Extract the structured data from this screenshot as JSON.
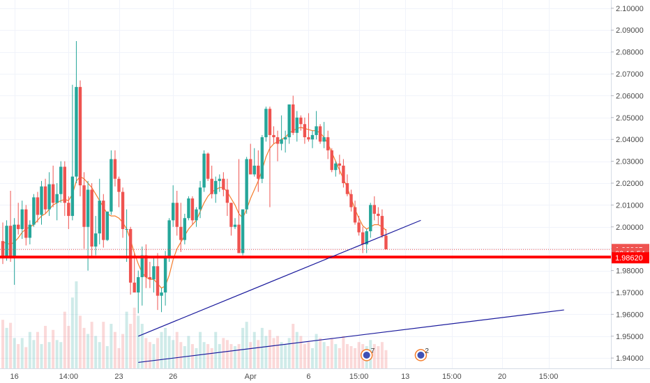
{
  "chart_data": {
    "type": "candlestick",
    "ylim": [
      1.9375,
      2.1025
    ],
    "yticks": [
      "2.10000",
      "2.09000",
      "2.08000",
      "2.07000",
      "2.06000",
      "2.05000",
      "2.04000",
      "2.03000",
      "2.02000",
      "2.01000",
      "2.00000",
      "1.99000",
      "1.98000",
      "1.97000",
      "1.96000",
      "1.95000",
      "1.94000"
    ],
    "xticks": [
      {
        "label": "16",
        "bar": 3
      },
      {
        "label": "14:00",
        "bar": 17
      },
      {
        "label": "23",
        "bar": 30
      },
      {
        "label": "26",
        "bar": 44
      },
      {
        "label": "Apr",
        "bar": 64
      },
      {
        "label": "6",
        "bar": 79
      },
      {
        "label": "15:00",
        "bar": 92
      },
      {
        "label": "13",
        "bar": 104
      },
      {
        "label": "15:00",
        "bar": 116
      },
      {
        "label": "20",
        "bar": 129
      },
      {
        "label": "15:00",
        "bar": 141
      }
    ],
    "candles": [
      [
        1.9935,
        2.002,
        1.983,
        1.986,
        48
      ],
      [
        1.986,
        2.003,
        1.9845,
        2.0005,
        40
      ],
      [
        2.0005,
        2.0165,
        1.984,
        1.9865,
        45
      ],
      [
        1.9865,
        2.004,
        1.9735,
        2.001,
        30
      ],
      [
        2.001,
        2.011,
        1.9965,
        1.999,
        24
      ],
      [
        1.999,
        2.012,
        1.9945,
        2.008,
        30
      ],
      [
        2.008,
        2.01,
        1.9915,
        1.995,
        21
      ],
      [
        1.995,
        2.003,
        1.992,
        2.001,
        36
      ],
      [
        2.001,
        2.015,
        2.0,
        2.0135,
        28
      ],
      [
        2.0135,
        2.016,
        2.002,
        2.0055,
        36
      ],
      [
        2.0055,
        2.021,
        2.001,
        2.0185,
        24
      ],
      [
        2.0185,
        2.022,
        2.006,
        2.008,
        42
      ],
      [
        2.008,
        2.025,
        2.005,
        2.0195,
        26
      ],
      [
        2.0195,
        2.028,
        2.009,
        2.011,
        38
      ],
      [
        2.011,
        2.02,
        2.003,
        2.015,
        28
      ],
      [
        2.015,
        2.03,
        2.011,
        2.0275,
        26
      ],
      [
        2.0275,
        2.03,
        2.005,
        2.011,
        56
      ],
      [
        2.011,
        2.014,
        1.999,
        2.005,
        42
      ],
      [
        2.005,
        2.065,
        2.003,
        2.023,
        70
      ],
      [
        2.023,
        2.085,
        2.02,
        2.064,
        86
      ],
      [
        2.064,
        2.067,
        2.014,
        2.019,
        52
      ],
      [
        2.019,
        2.025,
        1.99,
        2.0,
        40
      ],
      [
        2.0,
        2.021,
        1.98,
        2.017,
        34
      ],
      [
        2.017,
        2.02,
        1.986,
        1.991,
        46
      ],
      [
        1.991,
        2.005,
        1.987,
        1.997,
        32
      ],
      [
        1.997,
        2.022,
        1.992,
        2.012,
        26
      ],
      [
        2.012,
        2.015,
        1.9905,
        1.994,
        46
      ],
      [
        1.994,
        2.007,
        1.9935,
        2.007,
        22
      ],
      [
        2.007,
        2.035,
        2.0055,
        2.031,
        44
      ],
      [
        2.031,
        2.035,
        2.0185,
        2.022,
        36
      ],
      [
        2.022,
        2.023,
        2.009,
        2.016,
        20
      ],
      [
        2.016,
        2.018,
        1.995,
        1.999,
        34
      ],
      [
        1.999,
        2.008,
        1.984,
        1.999,
        56
      ],
      [
        1.999,
        2.0,
        1.969,
        1.9745,
        44
      ],
      [
        1.9745,
        1.988,
        1.9705,
        1.97,
        60
      ],
      [
        1.97,
        1.98,
        1.9605,
        1.977,
        52
      ],
      [
        1.977,
        1.991,
        1.964,
        1.987,
        44
      ],
      [
        1.987,
        1.992,
        1.972,
        1.977,
        30
      ],
      [
        1.977,
        1.984,
        1.972,
        1.976,
        26
      ],
      [
        1.976,
        1.986,
        1.97,
        1.982,
        24
      ],
      [
        1.982,
        1.988,
        1.962,
        1.9685,
        30
      ],
      [
        1.9685,
        1.972,
        1.961,
        1.97,
        36
      ],
      [
        1.97,
        1.989,
        1.964,
        1.986,
        40
      ],
      [
        1.986,
        2.004,
        1.984,
        2.003,
        32
      ],
      [
        2.003,
        2.019,
        2.0,
        2.011,
        28
      ],
      [
        2.011,
        2.0165,
        1.996,
        2.0,
        36
      ],
      [
        2.0,
        2.011,
        1.9885,
        1.994,
        26
      ],
      [
        1.994,
        2.006,
        1.992,
        2.004,
        22
      ],
      [
        2.004,
        2.014,
        2.003,
        2.013,
        32
      ],
      [
        2.013,
        2.014,
        2.001,
        2.003,
        24
      ],
      [
        2.003,
        2.009,
        2.0,
        2.008,
        20
      ],
      [
        2.008,
        2.021,
        2.004,
        2.018,
        36
      ],
      [
        2.018,
        2.035,
        2.016,
        2.0335,
        26
      ],
      [
        2.0335,
        2.034,
        2.021,
        2.022,
        24
      ],
      [
        2.022,
        2.028,
        2.013,
        2.015,
        20
      ],
      [
        2.015,
        2.023,
        2.011,
        2.021,
        36
      ],
      [
        2.021,
        2.024,
        2.016,
        2.022,
        24
      ],
      [
        2.022,
        2.025,
        2.014,
        2.017,
        30
      ],
      [
        2.017,
        2.022,
        2.005,
        2.011,
        28
      ],
      [
        2.011,
        2.011,
        1.996,
        2.0,
        24
      ],
      [
        2.0,
        2.004,
        1.999,
        2.001,
        22
      ],
      [
        2.001,
        2.031,
        1.989,
        1.988,
        24
      ],
      [
        1.988,
        2.008,
        1.987,
        2.008,
        40
      ],
      [
        2.008,
        2.032,
        2.006,
        2.031,
        46
      ],
      [
        2.031,
        2.038,
        2.024,
        2.024,
        26
      ],
      [
        2.024,
        2.036,
        2.023,
        2.028,
        36
      ],
      [
        2.028,
        2.035,
        2.016,
        2.022,
        28
      ],
      [
        2.022,
        2.042,
        2.02,
        2.041,
        40
      ],
      [
        2.041,
        2.055,
        2.039,
        2.054,
        32
      ],
      [
        2.054,
        2.055,
        2.009,
        2.042,
        38
      ],
      [
        2.042,
        2.046,
        2.038,
        2.041,
        30
      ],
      [
        2.041,
        2.044,
        2.03,
        2.038,
        32
      ],
      [
        2.038,
        2.051,
        2.035,
        2.04,
        26
      ],
      [
        2.04,
        2.044,
        2.034,
        2.041,
        24
      ],
      [
        2.041,
        2.056,
        2.038,
        2.056,
        30
      ],
      [
        2.056,
        2.06,
        2.042,
        2.043,
        44
      ],
      [
        2.043,
        2.053,
        2.039,
        2.05,
        36
      ],
      [
        2.05,
        2.051,
        2.044,
        2.047,
        32
      ],
      [
        2.047,
        2.05,
        2.038,
        2.041,
        24
      ],
      [
        2.041,
        2.052,
        2.039,
        2.04,
        26
      ],
      [
        2.04,
        2.044,
        2.036,
        2.042,
        20
      ],
      [
        2.042,
        2.053,
        2.04,
        2.046,
        34
      ],
      [
        2.046,
        2.047,
        2.038,
        2.039,
        30
      ],
      [
        2.039,
        2.048,
        2.036,
        2.041,
        26
      ],
      [
        2.041,
        2.044,
        2.031,
        2.035,
        22
      ],
      [
        2.035,
        2.036,
        2.025,
        2.026,
        30
      ],
      [
        2.026,
        2.03,
        2.023,
        2.029,
        24
      ],
      [
        2.029,
        2.033,
        2.024,
        2.028,
        20
      ],
      [
        2.028,
        2.031,
        2.018,
        2.02,
        32
      ],
      [
        2.02,
        2.024,
        2.014,
        2.015,
        24
      ],
      [
        2.015,
        2.017,
        2.007,
        2.009,
        22
      ],
      [
        2.009,
        2.012,
        2.001,
        2.002,
        20
      ],
      [
        2.002,
        2.005,
        1.996,
        1.9975,
        26
      ],
      [
        1.9975,
        2.0,
        1.988,
        1.992,
        24
      ],
      [
        1.992,
        1.999,
        1.988,
        1.998,
        22
      ],
      [
        1.998,
        2.011,
        1.995,
        2.01,
        28
      ],
      [
        2.01,
        2.014,
        2.003,
        2.006,
        24
      ],
      [
        2.006,
        2.009,
        2.001,
        2.005,
        22
      ],
      [
        2.005,
        2.008,
        1.995,
        1.996,
        26
      ],
      [
        1.996,
        1.999,
        1.99,
        1.9897,
        18
      ]
    ],
    "ma": [
      1.993,
      1.9925,
      1.992,
      1.993,
      1.995,
      1.9975,
      1.999,
      2.0,
      2.001,
      2.003,
      2.005,
      2.006,
      2.008,
      2.01,
      2.011,
      2.012,
      2.0125,
      2.012,
      2.015,
      2.021,
      2.023,
      2.022,
      2.02,
      2.018,
      2.015,
      2.012,
      2.009,
      2.006,
      2.005,
      2.005,
      2.004,
      2.002,
      1.999,
      1.994,
      1.988,
      1.983,
      1.979,
      1.977,
      1.976,
      1.976,
      1.974,
      1.972,
      1.973,
      1.978,
      1.985,
      1.99,
      1.993,
      1.996,
      1.999,
      2.001,
      2.003,
      2.007,
      2.011,
      2.014,
      2.016,
      2.017,
      2.018,
      2.018,
      2.016,
      2.013,
      2.01,
      2.006,
      2.004,
      2.008,
      2.013,
      2.017,
      2.021,
      2.026,
      2.032,
      2.036,
      2.038,
      2.039,
      2.04,
      2.041,
      2.043,
      2.044,
      2.045,
      2.0455,
      2.045,
      2.0445,
      2.044,
      2.044,
      2.043,
      2.041,
      2.038,
      2.034,
      2.03,
      2.026,
      2.022,
      2.018,
      2.013,
      2.008,
      2.004,
      2.0005,
      1.999,
      2.0,
      2.001,
      2.001,
      2.0,
      1.9985
    ],
    "trendlines": [
      {
        "from": [
          35,
          1.95
        ],
        "to": [
          108,
          2.003
        ],
        "color": "#1a1a9c"
      },
      {
        "from": [
          35,
          1.938
        ],
        "to": [
          145,
          1.962
        ],
        "color": "#1a1a9c"
      }
    ],
    "horizontal_line": {
      "price": 1.9862,
      "color": "#ff0000"
    },
    "last_price_line": {
      "price": 1.98965,
      "color": "#ef5350"
    },
    "price_labels": [
      {
        "text": "1.98965",
        "price": 1.98965,
        "color": "#ef5350"
      },
      {
        "text": "03:10:54",
        "price": 1.98785,
        "color": "#ef5350"
      },
      {
        "text": "1.98620",
        "price": 1.98585,
        "color": "#ff0000"
      }
    ],
    "event_flags": [
      {
        "bar": 94,
        "count": "7"
      },
      {
        "bar": 108,
        "count": "2"
      }
    ],
    "colors": {
      "up": "#26a69a",
      "down": "#ef5350",
      "ma": "#f57c2a",
      "grid": "#f0f3fa",
      "axis": "#d6dce6"
    }
  }
}
